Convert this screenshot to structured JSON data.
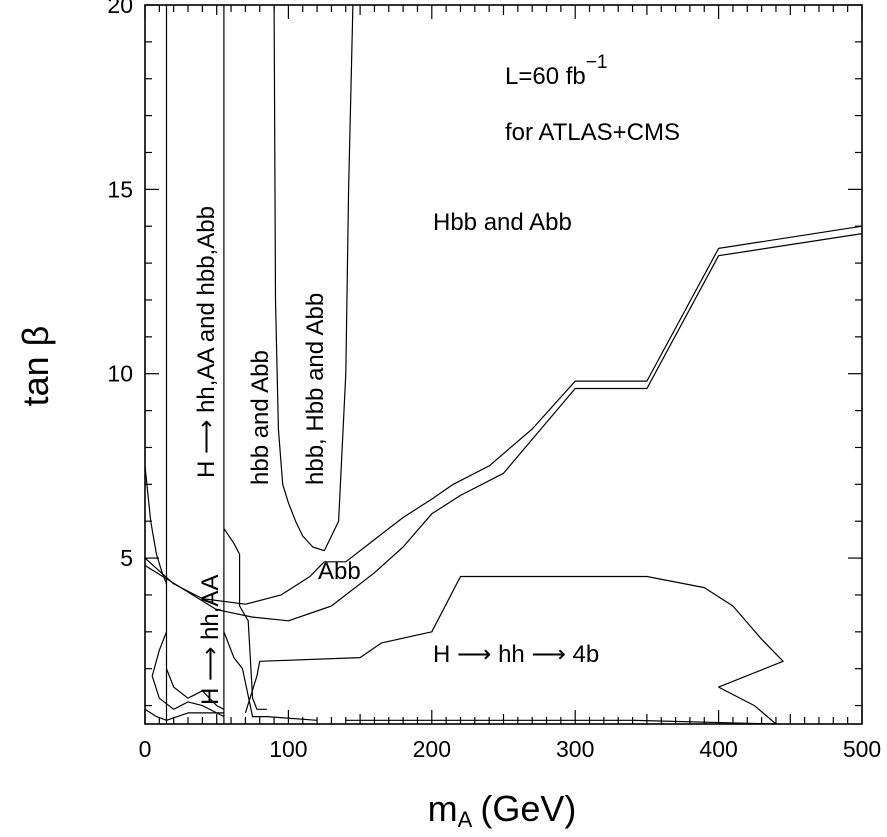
{
  "chart_data": {
    "type": "line",
    "title": "",
    "xlabel_main": "m",
    "xlabel_sub": "A",
    "xlabel_unit": "(GeV)",
    "ylabel": "tan β",
    "xlim": [
      0,
      500
    ],
    "ylim": [
      0.5,
      20
    ],
    "x_ticks": [
      0,
      100,
      200,
      300,
      400,
      500
    ],
    "y_ticks": [
      5,
      10,
      15,
      20
    ],
    "grid": false,
    "legend": "none",
    "annotations": {
      "lumi_line1_base": "L=60 fb",
      "lumi_line1_sup": "−1",
      "lumi_line2": "for ATLAS+CMS",
      "hbb_abb": "Hbb and Abb",
      "h_hh_4b": "H ⟶ hh ⟶ 4b",
      "abb": "Abb",
      "h_hhaa_hbb": "H ⟶ hh,AA and hbb,Abb",
      "hbb_and_abb": "hbb and Abb",
      "hbb_hbb_abb": "hbb, Hbb and Abb",
      "h_hhaa_small": "H ⟶ hh,AA"
    },
    "series": [
      {
        "id": "vline-15",
        "points": [
          [
            15,
            0.5
          ],
          [
            15,
            20
          ]
        ]
      },
      {
        "id": "vline-55",
        "points": [
          [
            55,
            0.5
          ],
          [
            55,
            20
          ]
        ]
      },
      {
        "id": "u-curve",
        "points": [
          [
            90,
            20
          ],
          [
            91,
            12
          ],
          [
            93,
            8.5
          ],
          [
            96,
            7
          ],
          [
            100,
            6.5
          ],
          [
            105,
            6
          ],
          [
            110,
            5.6
          ],
          [
            117,
            5.3
          ],
          [
            125,
            5.2
          ],
          [
            135,
            6
          ],
          [
            140,
            10
          ],
          [
            142,
            15
          ],
          [
            145,
            20
          ]
        ]
      },
      {
        "id": "abb-upper",
        "points": [
          [
            0,
            5
          ],
          [
            20,
            4.3
          ],
          [
            40,
            3.9
          ],
          [
            70,
            3.75
          ],
          [
            95,
            4
          ],
          [
            115,
            4.5
          ],
          [
            125,
            4.9
          ],
          [
            140,
            4.9
          ],
          [
            160,
            5.5
          ],
          [
            180,
            6.1
          ],
          [
            200,
            6.6
          ],
          [
            215,
            7
          ],
          [
            240,
            7.5
          ],
          [
            270,
            8.5
          ],
          [
            300,
            9.8
          ],
          [
            350,
            9.8
          ],
          [
            400,
            13.4
          ],
          [
            500,
            14
          ]
        ]
      },
      {
        "id": "abb-lower",
        "points": [
          [
            0,
            4.8
          ],
          [
            50,
            3.6
          ],
          [
            75,
            3.4
          ],
          [
            100,
            3.3
          ],
          [
            130,
            3.7
          ],
          [
            160,
            4.6
          ],
          [
            180,
            5.3
          ],
          [
            200,
            6.2
          ],
          [
            220,
            6.7
          ],
          [
            250,
            7.3
          ],
          [
            300,
            9.6
          ],
          [
            350,
            9.6
          ],
          [
            400,
            13.2
          ],
          [
            500,
            13.8
          ]
        ]
      },
      {
        "id": "left-curve",
        "points": [
          [
            0,
            7.5
          ],
          [
            4,
            6
          ],
          [
            8,
            5.1
          ],
          [
            12,
            4.6
          ],
          [
            15,
            4.3
          ]
        ]
      },
      {
        "id": "hh4b-region",
        "points": [
          [
            70,
            0.8
          ],
          [
            78,
            1.8
          ],
          [
            80,
            2.2
          ],
          [
            150,
            2.3
          ],
          [
            165,
            2.7
          ],
          [
            200,
            3
          ],
          [
            220,
            4.5
          ],
          [
            350,
            4.5
          ],
          [
            390,
            4.2
          ],
          [
            410,
            3.7
          ],
          [
            430,
            2.8
          ],
          [
            445,
            2.2
          ],
          [
            400,
            1.5
          ],
          [
            425,
            1
          ],
          [
            440,
            0.5
          ]
        ]
      },
      {
        "id": "bottom-curve",
        "points": [
          [
            140,
            0.6
          ],
          [
            270,
            0.6
          ],
          [
            340,
            0.6
          ],
          [
            440,
            0.5
          ]
        ]
      },
      {
        "id": "bl-region",
        "points": [
          [
            15,
            3
          ],
          [
            10,
            2.5
          ],
          [
            5,
            1.8
          ],
          [
            10,
            1.2
          ],
          [
            20,
            0.9
          ],
          [
            30,
            1.1
          ],
          [
            40,
            1
          ],
          [
            50,
            0.8
          ],
          [
            55,
            0.7
          ]
        ]
      },
      {
        "id": "bl-inner",
        "points": [
          [
            15,
            2
          ],
          [
            20,
            1.5
          ],
          [
            30,
            1.2
          ],
          [
            40,
            1.4
          ],
          [
            45,
            1.2
          ],
          [
            50,
            1
          ],
          [
            55,
            0.9
          ]
        ]
      },
      {
        "id": "bl-inner2",
        "points": [
          [
            0,
            0.9
          ],
          [
            8,
            0.7
          ],
          [
            15,
            0.6
          ],
          [
            30,
            0.8
          ],
          [
            55,
            0.8
          ]
        ]
      },
      {
        "id": "mid-strip",
        "points": [
          [
            55,
            3
          ],
          [
            62,
            2.3
          ],
          [
            68,
            2
          ],
          [
            75,
            0.7
          ],
          [
            85,
            0.7
          ],
          [
            120,
            0.6
          ]
        ]
      },
      {
        "id": "strip-right",
        "points": [
          [
            55,
            5.8
          ],
          [
            62,
            5.4
          ],
          [
            66,
            5.1
          ],
          [
            66,
            3.7
          ],
          [
            72,
            3.3
          ],
          [
            75,
            1.2
          ],
          [
            78,
            0.9
          ],
          [
            85,
            0.9
          ]
        ]
      }
    ]
  }
}
